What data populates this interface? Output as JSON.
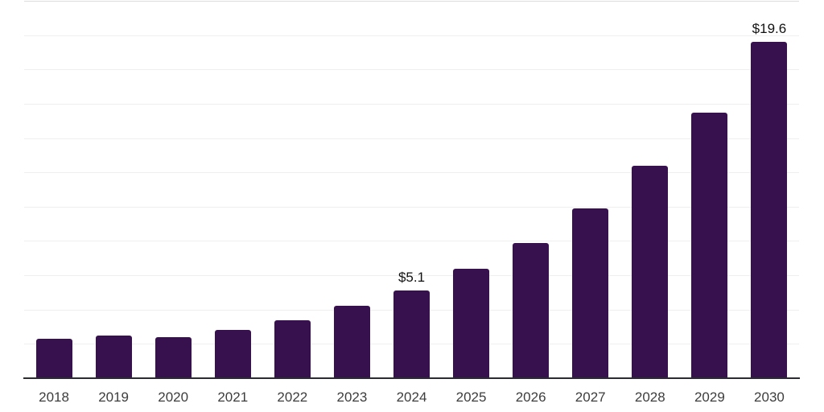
{
  "chart_data": {
    "type": "bar",
    "title": "",
    "xlabel": "",
    "ylabel": "",
    "categories": [
      "2018",
      "2019",
      "2020",
      "2021",
      "2022",
      "2023",
      "2024",
      "2025",
      "2026",
      "2027",
      "2028",
      "2029",
      "2030"
    ],
    "values": [
      2.3,
      2.5,
      2.4,
      2.8,
      3.4,
      4.2,
      5.1,
      6.4,
      7.9,
      9.9,
      12.4,
      15.5,
      19.6
    ],
    "annotations": [
      {
        "category": "2024",
        "text": "$5.1"
      },
      {
        "category": "2030",
        "text": "$19.6"
      }
    ],
    "ylim": [
      0,
      22
    ],
    "gridline_step": 2,
    "grid": true,
    "legend": false,
    "colors": {
      "bar": "#36114d",
      "gridline": "#efefef",
      "gridline_top": "#dcdcdc",
      "axis_line": "#2b2b33",
      "tick_label": "#3d3d3d",
      "value_label": "#111111",
      "background": "#ffffff"
    }
  }
}
